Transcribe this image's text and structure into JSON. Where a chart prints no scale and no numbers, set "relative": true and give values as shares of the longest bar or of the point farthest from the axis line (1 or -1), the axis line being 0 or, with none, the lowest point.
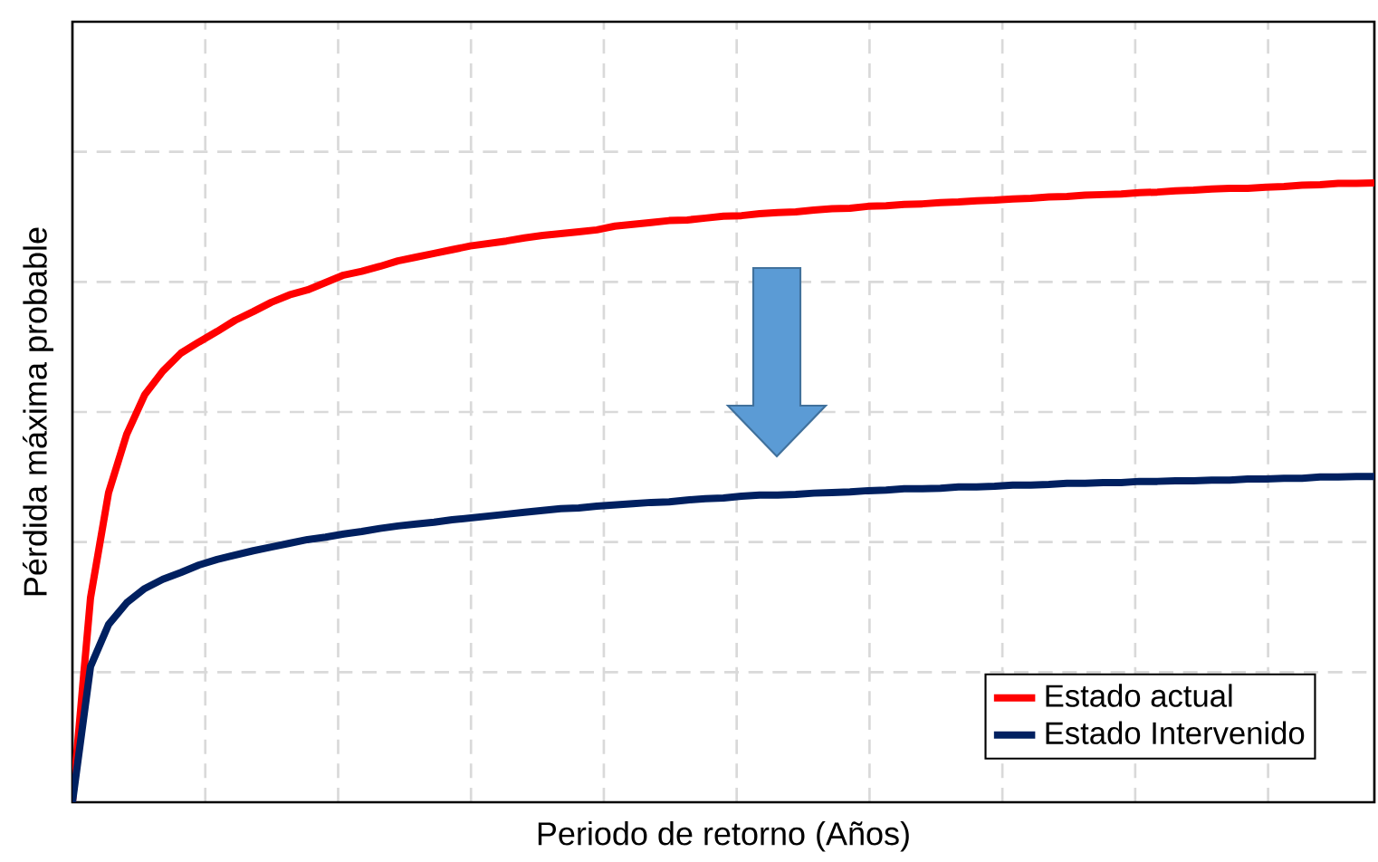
{
  "chart_data": {
    "type": "line",
    "xlabel": "Periodo de retorno (Años)",
    "ylabel": "Pérdida máxima probable",
    "relative": true,
    "tick_labels": false,
    "grid": true,
    "legend": "bottom right",
    "marker": "none",
    "line_style": "solid",
    "categories": [
      null,
      null,
      null,
      null,
      null,
      null,
      null,
      null,
      null,
      null,
      null,
      null,
      null,
      null,
      null,
      null,
      null,
      null,
      null,
      null,
      null,
      null,
      null,
      null,
      null,
      null,
      null,
      null,
      null,
      null,
      null,
      null,
      null,
      null,
      null,
      null,
      null,
      null,
      null,
      null,
      null,
      null,
      null,
      null,
      null,
      null,
      null,
      null,
      null,
      null,
      null,
      null,
      null,
      null,
      null,
      null,
      null,
      null,
      null,
      null,
      null,
      null,
      null,
      null,
      null,
      null,
      null,
      null,
      null,
      null,
      null,
      null,
      null
    ],
    "series": [
      {
        "name": "Estado actual",
        "color": "#ff0000",
        "values": [
          0,
          0.33,
          0.5,
          0.594,
          0.658,
          0.696,
          0.725,
          0.743,
          0.76,
          0.778,
          0.792,
          0.807,
          0.819,
          0.827,
          0.839,
          0.851,
          0.857,
          0.865,
          0.874,
          0.88,
          0.886,
          0.892,
          0.898,
          0.902,
          0.906,
          0.911,
          0.915,
          0.918,
          0.921,
          0.924,
          0.93,
          0.933,
          0.936,
          0.939,
          0.94,
          0.943,
          0.946,
          0.947,
          0.95,
          0.952,
          0.953,
          0.956,
          0.958,
          0.959,
          0.962,
          0.963,
          0.965,
          0.966,
          0.968,
          0.969,
          0.971,
          0.972,
          0.974,
          0.975,
          0.977,
          0.978,
          0.98,
          0.981,
          0.982,
          0.984,
          0.985,
          0.987,
          0.988,
          0.99,
          0.991,
          0.991,
          0.993,
          0.994,
          0.996,
          0.997,
          0.999,
          0.999,
          1.0
        ]
      },
      {
        "name": "Estado Intervenido",
        "color": "#002060",
        "values": [
          0,
          0.219,
          0.287,
          0.322,
          0.345,
          0.36,
          0.371,
          0.383,
          0.392,
          0.399,
          0.406,
          0.412,
          0.418,
          0.424,
          0.428,
          0.433,
          0.437,
          0.442,
          0.446,
          0.449,
          0.452,
          0.456,
          0.459,
          0.462,
          0.465,
          0.468,
          0.471,
          0.474,
          0.475,
          0.478,
          0.48,
          0.482,
          0.484,
          0.485,
          0.488,
          0.49,
          0.491,
          0.494,
          0.496,
          0.496,
          0.497,
          0.499,
          0.5,
          0.501,
          0.503,
          0.504,
          0.506,
          0.506,
          0.507,
          0.509,
          0.509,
          0.51,
          0.512,
          0.512,
          0.513,
          0.515,
          0.515,
          0.516,
          0.516,
          0.518,
          0.518,
          0.519,
          0.519,
          0.52,
          0.52,
          0.522,
          0.522,
          0.523,
          0.523,
          0.525,
          0.525,
          0.526,
          0.526
        ]
      }
    ]
  }
}
